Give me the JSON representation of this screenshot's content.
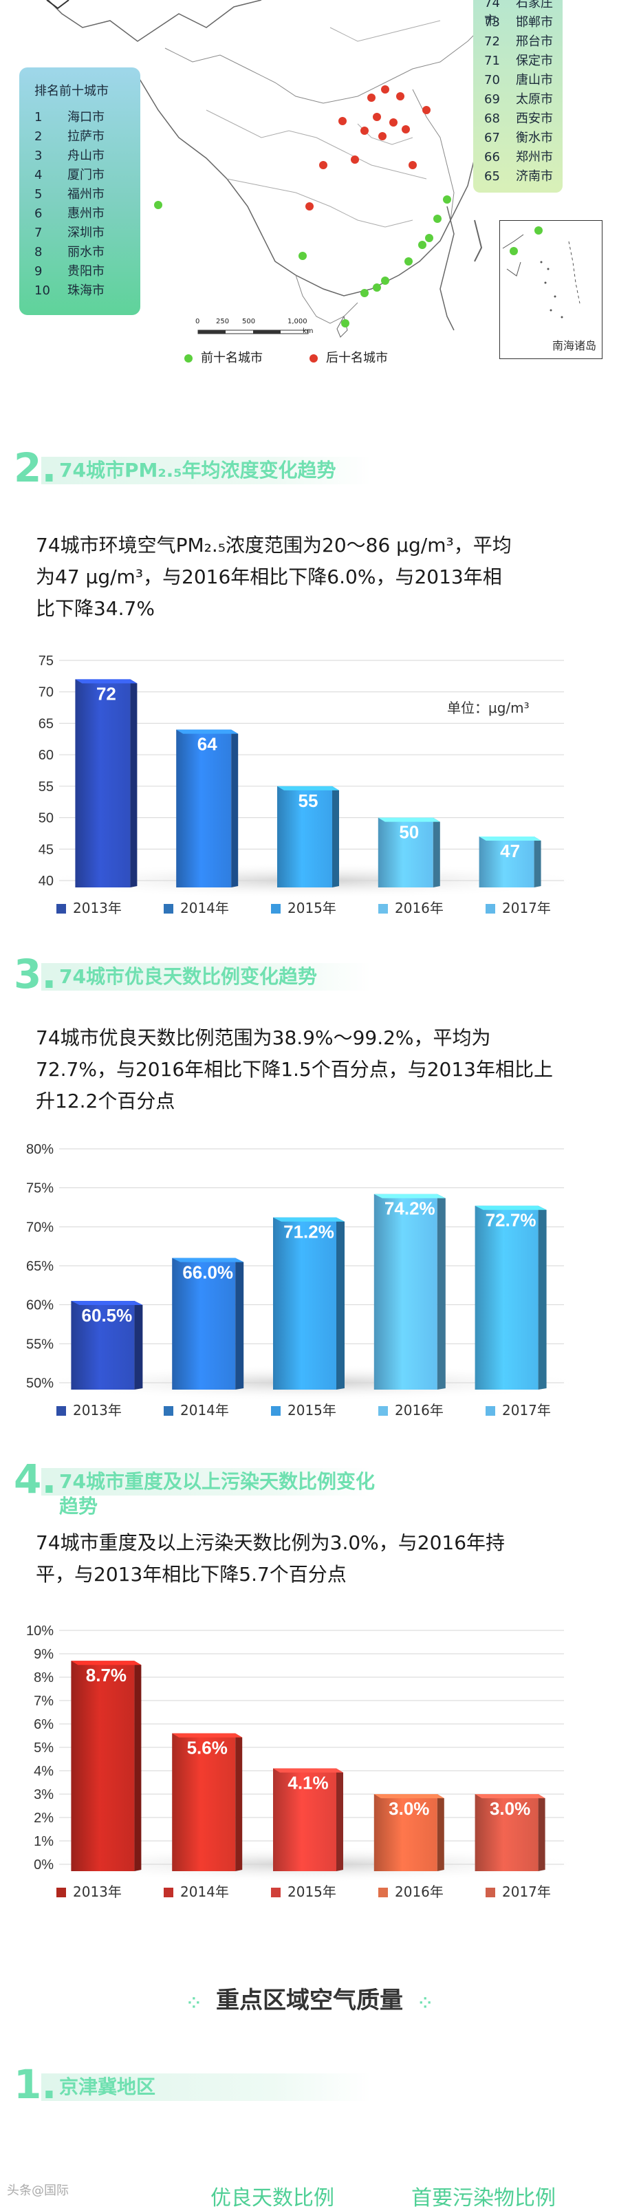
{
  "map": {
    "top_ten_box": {
      "title": "排名前十城市",
      "items": [
        {
          "rank": "1",
          "city": "海口市"
        },
        {
          "rank": "2",
          "city": "拉萨市"
        },
        {
          "rank": "3",
          "city": "舟山市"
        },
        {
          "rank": "4",
          "city": "厦门市"
        },
        {
          "rank": "5",
          "city": "福州市"
        },
        {
          "rank": "6",
          "city": "惠州市"
        },
        {
          "rank": "7",
          "city": "深圳市"
        },
        {
          "rank": "8",
          "city": "丽水市"
        },
        {
          "rank": "9",
          "city": "贵阳市"
        },
        {
          "rank": "10",
          "city": "珠海市"
        }
      ]
    },
    "bottom_ten_box": {
      "items": [
        {
          "rank": "74",
          "city": "石家庄市"
        },
        {
          "rank": "73",
          "city": "邯郸市"
        },
        {
          "rank": "72",
          "city": "邢台市"
        },
        {
          "rank": "71",
          "city": "保定市"
        },
        {
          "rank": "70",
          "city": "唐山市"
        },
        {
          "rank": "69",
          "city": "太原市"
        },
        {
          "rank": "68",
          "city": "西安市"
        },
        {
          "rank": "67",
          "city": "衡水市"
        },
        {
          "rank": "66",
          "city": "郑州市"
        },
        {
          "rank": "65",
          "city": "济南市"
        }
      ]
    },
    "scale_labels": [
      "0",
      "250",
      "500",
      "1,000",
      "km"
    ],
    "legend": [
      {
        "label": "前十名城市",
        "color": "#5ccf3d"
      },
      {
        "label": "后十名城市",
        "color": "#e03a2a"
      }
    ],
    "inset_label": "南海诸岛"
  },
  "sections": [
    {
      "num": "2.",
      "title": "74城市PM₂.₅年均浓度变化趋势",
      "paragraph": [
        "74城市环境空气PM₂.₅浓度范围为20～86 μg/m³，平均",
        "为47 μg/m³，与2016年相比下降6.0%，与2013年相",
        "比下降34.7%"
      ]
    },
    {
      "num": "3.",
      "title": "74城市优良天数比例变化趋势",
      "paragraph": [
        "74城市优良天数比例范围为38.9%～99.2%，平均为",
        "72.7%，与2016年相比下降1.5个百分点，与2013年相比上",
        "升12.2个百分点"
      ]
    },
    {
      "num": "4.",
      "title": "74城市重度及以上污染天数比例变化趋势",
      "paragraph": [
        "74城市重度及以上污染天数比例为3.0%，与2016年持",
        "平，与2013年相比下降5.7个百分点"
      ]
    }
  ],
  "chart_data": [
    {
      "type": "bar",
      "title": "74城市PM₂.₅年均浓度变化趋势",
      "unit_label": "单位：μg/m³",
      "categories": [
        "2013年",
        "2014年",
        "2015年",
        "2016年",
        "2017年"
      ],
      "values": [
        72,
        64,
        55,
        50,
        47
      ],
      "value_labels": [
        "72",
        "64",
        "55",
        "50",
        "47"
      ],
      "y_ticks": [
        "75",
        "70",
        "65",
        "60",
        "55",
        "50",
        "45",
        "40"
      ],
      "ylim": [
        40,
        75
      ],
      "colors": [
        "#2f4fbf",
        "#2f7ee0",
        "#3aa3ec",
        "#62c0f2",
        "#62c0f2"
      ],
      "legend_colors": [
        "#2f4fa8",
        "#2f74b9",
        "#3a9ae0",
        "#6cc0ec",
        "#62b9ea"
      ],
      "grid": true,
      "legend": "bottom"
    },
    {
      "type": "bar",
      "title": "74城市优良天数比例变化趋势",
      "categories": [
        "2013年",
        "2014年",
        "2015年",
        "2016年",
        "2017年"
      ],
      "values": [
        60.5,
        66.0,
        71.2,
        74.2,
        72.7
      ],
      "value_labels": [
        "60.5%",
        "66.0%",
        "71.2%",
        "74.2%",
        "72.7%"
      ],
      "y_ticks": [
        "80%",
        "75%",
        "70%",
        "65%",
        "60%",
        "55%",
        "50%"
      ],
      "ylim": [
        50,
        80
      ],
      "colors": [
        "#2f4fbf",
        "#2f7ee0",
        "#3aa3ec",
        "#62c0f2",
        "#4ab8f0"
      ],
      "legend_colors": [
        "#2f4fa8",
        "#2f74b9",
        "#3a9ae0",
        "#6cc0ec",
        "#62b9ea"
      ],
      "grid": true,
      "legend": "bottom"
    },
    {
      "type": "bar",
      "title": "74城市重度及以上污染天数比例变化趋势",
      "categories": [
        "2013年",
        "2014年",
        "2015年",
        "2016年",
        "2017年"
      ],
      "values": [
        8.7,
        5.6,
        4.1,
        3.0,
        3.0
      ],
      "value_labels": [
        "8.7%",
        "5.6%",
        "4.1%",
        "3.0%",
        "3.0%"
      ],
      "y_ticks": [
        "10%",
        "9%",
        "8%",
        "7%",
        "6%",
        "5%",
        "4%",
        "3%",
        "2%",
        "1%",
        "0%"
      ],
      "ylim": [
        0,
        10
      ],
      "colors": [
        "#c62a22",
        "#d9362a",
        "#e2423a",
        "#ea6a44",
        "#d95a48"
      ],
      "legend_colors": [
        "#b0281e",
        "#c2302a",
        "#d0403a",
        "#e0704a",
        "#d0604a"
      ],
      "grid": true,
      "legend": "bottom"
    }
  ],
  "key_regions": {
    "title": "重点区域空气质量",
    "first_section": {
      "num": "1.",
      "title": "京津冀地区"
    },
    "tabs": [
      "优良天数比例",
      "首要污染物比例"
    ]
  },
  "watermark": "头条@国际"
}
